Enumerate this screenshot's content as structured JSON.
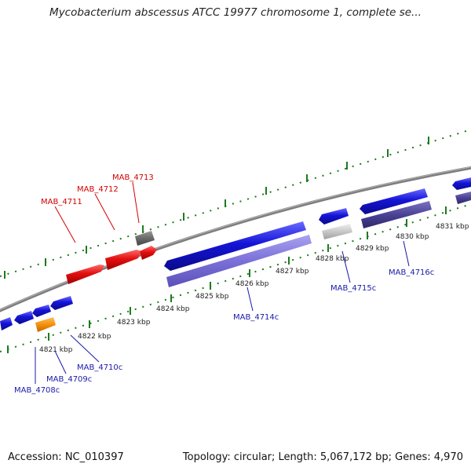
{
  "title": "Mycobacterium abscessus ATCC 19977 chromosome 1, complete se...",
  "footer": {
    "accession": "Accession: NC_010397",
    "topology": "Topology: circular; Length: 5,067,172 bp; Genes: 4,970"
  },
  "colors": {
    "backbone": "#8a8a8a",
    "tick": "#1e7a1e",
    "label_red": "#d40000",
    "label_blue": "#1a1aa8",
    "gene_red": "#e31010",
    "gene_blue": "#1414d8",
    "gene_lightblue": "#7a70d8",
    "gene_darkblue": "#4a4296",
    "gene_gray": "#6a6a6a",
    "gene_lightgray": "#c8c8c8",
    "gene_orange": "#f5900a"
  },
  "ticks": [
    "4821 kbp",
    "4822 kbp",
    "4823 kbp",
    "4824 kbp",
    "4825 kbp",
    "4826 kbp",
    "4827 kbp",
    "4828 kbp",
    "4829 kbp",
    "4830 kbp",
    "4831 kbp"
  ],
  "labels": {
    "MAB_4708c": "MAB_4708c",
    "MAB_4709c": "MAB_4709c",
    "MAB_4710c": "MAB_4710c",
    "MAB_4711": "MAB_4711",
    "MAB_4712": "MAB_4712",
    "MAB_4713": "MAB_4713",
    "MAB_4714c": "MAB_4714c",
    "MAB_4715c": "MAB_4715c",
    "MAB_4716c": "MAB_4716c"
  }
}
